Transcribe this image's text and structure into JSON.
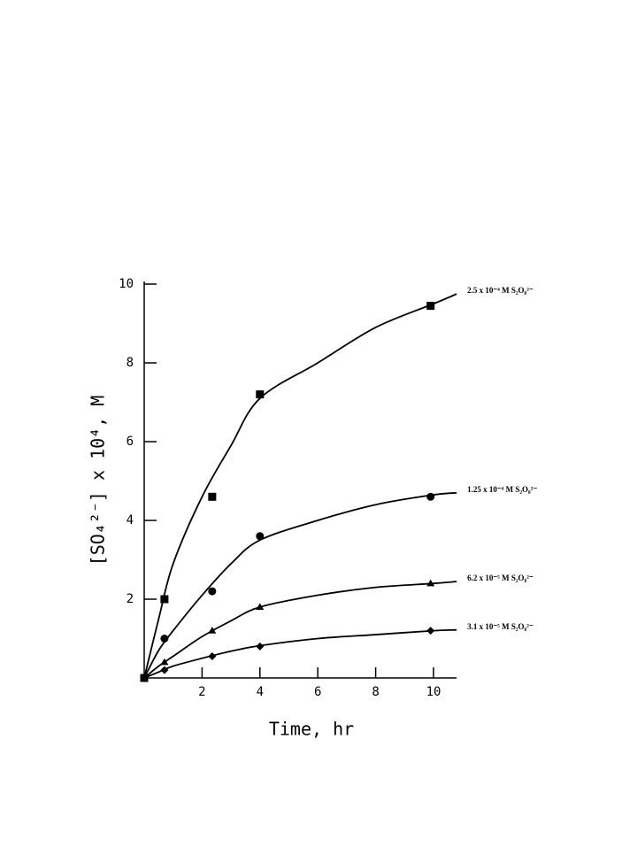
{
  "chart_data": {
    "type": "scatter",
    "x_label": "Time, hr",
    "y_label": "[SO₄²⁻] x 10⁴, M",
    "xlim": [
      0,
      10.8
    ],
    "ylim": [
      0,
      10
    ],
    "xticks": [
      2,
      4,
      6,
      8,
      10
    ],
    "yticks": [
      2,
      4,
      6,
      8,
      10
    ],
    "x": [
      0,
      0.7,
      2.35,
      4,
      9.9
    ],
    "fit_x": [
      0,
      0.5,
      1,
      2,
      3,
      4,
      6,
      8,
      10,
      10.8
    ],
    "series": [
      {
        "name": "2.5 x 10⁻⁴ M  S₂O₈²⁻",
        "color": "#000000",
        "marker": "square",
        "values": [
          0,
          2.0,
          4.6,
          7.2,
          9.45
        ],
        "fit_values": [
          0,
          1.5,
          2.9,
          4.6,
          5.9,
          7.1,
          8.0,
          8.9,
          9.5,
          9.75
        ]
      },
      {
        "name": "1.25 x 10⁻⁴ M  S₂O₈²⁻",
        "color": "#000000",
        "marker": "circle",
        "values": [
          0,
          1.0,
          2.2,
          3.6,
          4.6
        ],
        "fit_values": [
          0,
          0.7,
          1.2,
          2.1,
          2.9,
          3.5,
          4.0,
          4.4,
          4.65,
          4.7
        ]
      },
      {
        "name": "6.2 x 10⁻⁵ M  S₂O₈²⁻",
        "color": "#000000",
        "marker": "triangle",
        "values": [
          0,
          0.4,
          1.2,
          1.8,
          2.4
        ],
        "fit_values": [
          0,
          0.3,
          0.55,
          1.05,
          1.45,
          1.8,
          2.1,
          2.3,
          2.4,
          2.45
        ]
      },
      {
        "name": "3.1 x 10⁻⁵ M  S₂O₈²⁻",
        "color": "#000000",
        "marker": "diamond",
        "values": [
          0,
          0.2,
          0.55,
          0.8,
          1.2
        ],
        "fit_values": [
          0,
          0.15,
          0.3,
          0.5,
          0.68,
          0.82,
          1.0,
          1.1,
          1.2,
          1.22
        ]
      }
    ]
  }
}
